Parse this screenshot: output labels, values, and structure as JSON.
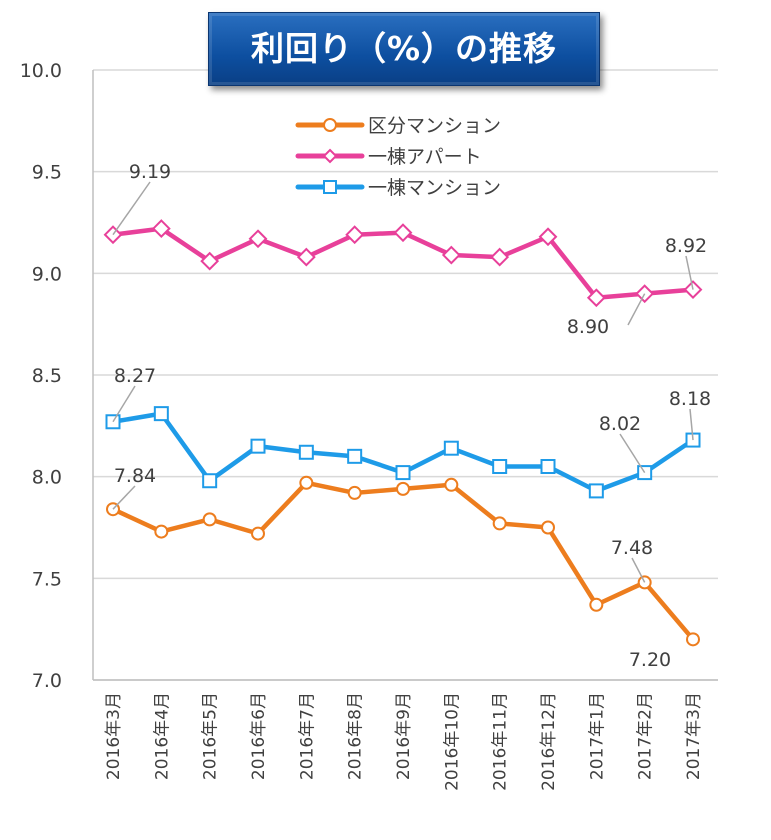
{
  "chart_data": {
    "type": "line",
    "title": "利回り（%）の推移",
    "xlabel": "",
    "ylabel": "",
    "ylim": [
      7.0,
      10.0
    ],
    "yticks": [
      "7.0",
      "7.5",
      "8.0",
      "8.5",
      "9.0",
      "9.5",
      "10.0"
    ],
    "grid": true,
    "legend_position": "top-center",
    "categories": [
      "2016年3月",
      "2016年4月",
      "2016年5月",
      "2016年6月",
      "2016年7月",
      "2016年8月",
      "2016年9月",
      "2016年10月",
      "2016年11月",
      "2016年12月",
      "2017年1月",
      "2017年2月",
      "2017年3月"
    ],
    "series": [
      {
        "name": "区分マンション",
        "color": "#ED7D1E",
        "marker": "circle",
        "values": [
          7.84,
          7.73,
          7.79,
          7.72,
          7.97,
          7.92,
          7.94,
          7.96,
          7.77,
          7.75,
          7.37,
          7.48,
          7.2
        ]
      },
      {
        "name": "一棟アパート",
        "color": "#E8409A",
        "marker": "diamond",
        "values": [
          9.19,
          9.22,
          9.06,
          9.17,
          9.08,
          9.19,
          9.2,
          9.09,
          9.08,
          9.18,
          8.88,
          8.9,
          8.92
        ]
      },
      {
        "name": "一棟マンション",
        "color": "#1E9BE8",
        "marker": "square",
        "values": [
          8.27,
          8.31,
          7.98,
          8.15,
          8.12,
          8.1,
          8.02,
          8.14,
          8.05,
          8.05,
          7.93,
          8.02,
          8.18
        ]
      }
    ],
    "data_labels": [
      {
        "series": 1,
        "index": 0,
        "text": "9.19"
      },
      {
        "series": 1,
        "index": 11,
        "text": "8.90"
      },
      {
        "series": 1,
        "index": 12,
        "text": "8.92"
      },
      {
        "series": 2,
        "index": 0,
        "text": "8.27"
      },
      {
        "series": 2,
        "index": 11,
        "text": "8.02"
      },
      {
        "series": 2,
        "index": 12,
        "text": "8.18"
      },
      {
        "series": 0,
        "index": 0,
        "text": "7.84"
      },
      {
        "series": 0,
        "index": 11,
        "text": "7.48"
      },
      {
        "series": 0,
        "index": 12,
        "text": "7.20"
      }
    ]
  }
}
